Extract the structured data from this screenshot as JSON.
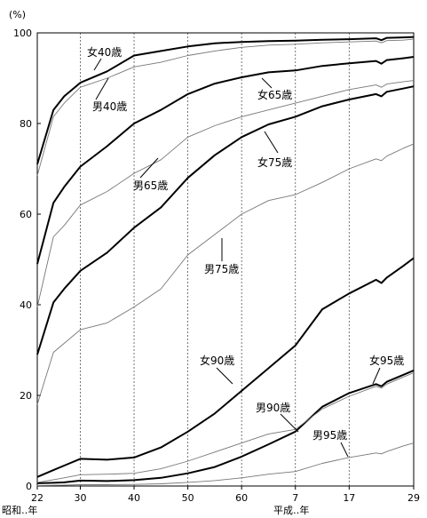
{
  "chart_data": {
    "type": "line",
    "unit_label": "(%)",
    "x_ticks": [
      {
        "year": 1947,
        "label": "22"
      },
      {
        "year": 1955,
        "label": "30"
      },
      {
        "year": 1965,
        "label": "40"
      },
      {
        "year": 1975,
        "label": "50"
      },
      {
        "year": 1985,
        "label": "60"
      },
      {
        "year": 1995,
        "label": "7"
      },
      {
        "year": 2005,
        "label": "17"
      },
      {
        "year": 2017,
        "label": "29"
      }
    ],
    "x_era_labels": {
      "showa": "昭和‥年",
      "heisei": "平成‥年"
    },
    "xlim": [
      1947,
      2017
    ],
    "ylim": [
      0,
      100
    ],
    "y_ticks": [
      0,
      20,
      40,
      60,
      80,
      100
    ],
    "grid": {
      "vertical": true,
      "horizontal": false
    },
    "series": [
      {
        "name": "女40歳",
        "sex": "female",
        "weight": "bold",
        "x": [
          1947,
          1950,
          1952,
          1955,
          1960,
          1965,
          1970,
          1975,
          1980,
          1985,
          1990,
          1995,
          2000,
          2005,
          2010,
          2011,
          2012,
          2015,
          2017
        ],
        "y": [
          71,
          83,
          86,
          89,
          91.5,
          95,
          96,
          97,
          97.7,
          98,
          98.2,
          98.3,
          98.5,
          98.6,
          98.8,
          98.4,
          98.9,
          99,
          99.1
        ]
      },
      {
        "name": "男40歳",
        "sex": "male",
        "weight": "thin",
        "x": [
          1947,
          1950,
          1952,
          1955,
          1960,
          1965,
          1970,
          1975,
          1980,
          1985,
          1990,
          1995,
          2000,
          2005,
          2010,
          2011,
          2012,
          2015,
          2017
        ],
        "y": [
          68.5,
          81.5,
          84.5,
          88,
          90,
          92.5,
          93.5,
          95,
          96,
          96.8,
          97.3,
          97.5,
          97.8,
          98,
          98.2,
          97.8,
          98.3,
          98.4,
          98.6
        ]
      },
      {
        "name": "女65歳",
        "sex": "female",
        "weight": "bold",
        "x": [
          1947,
          1950,
          1952,
          1955,
          1960,
          1965,
          1970,
          1975,
          1980,
          1985,
          1990,
          1995,
          2000,
          2005,
          2010,
          2011,
          2012,
          2015,
          2017
        ],
        "y": [
          49,
          62.5,
          66,
          70.5,
          75,
          80,
          83,
          86.5,
          88.8,
          90.2,
          91.3,
          91.7,
          92.7,
          93.3,
          93.8,
          93.2,
          94,
          94.4,
          94.7
        ]
      },
      {
        "name": "男65歳",
        "sex": "male",
        "weight": "thin",
        "x": [
          1947,
          1950,
          1952,
          1955,
          1960,
          1965,
          1970,
          1975,
          1980,
          1985,
          1990,
          1995,
          2000,
          2005,
          2010,
          2011,
          2012,
          2015,
          2017
        ],
        "y": [
          39.5,
          55,
          57.5,
          62,
          65,
          69,
          72,
          77,
          79.5,
          81.5,
          83,
          84.5,
          86,
          87.5,
          88.5,
          88,
          88.7,
          89.2,
          89.5
        ]
      },
      {
        "name": "女75歳",
        "sex": "female",
        "weight": "bold",
        "x": [
          1947,
          1950,
          1952,
          1955,
          1960,
          1965,
          1970,
          1975,
          1980,
          1985,
          1990,
          1995,
          2000,
          2005,
          2010,
          2011,
          2012,
          2015,
          2017
        ],
        "y": [
          29,
          40.5,
          43.5,
          47.5,
          51.5,
          57,
          61.5,
          68,
          73,
          77,
          79.8,
          81.5,
          83.8,
          85.3,
          86.5,
          86,
          87,
          87.7,
          88.2
        ]
      },
      {
        "name": "男75歳",
        "sex": "male",
        "weight": "thin",
        "x": [
          1947,
          1950,
          1952,
          1955,
          1960,
          1965,
          1970,
          1975,
          1980,
          1985,
          1990,
          1995,
          2000,
          2005,
          2010,
          2011,
          2012,
          2015,
          2017
        ],
        "y": [
          18,
          29.5,
          31.5,
          34.5,
          36,
          39.5,
          43.5,
          51,
          55.5,
          60,
          63,
          64.3,
          67,
          70,
          72.2,
          71.8,
          72.8,
          74.5,
          75.5
        ]
      },
      {
        "name": "女90歳",
        "sex": "female",
        "weight": "bold",
        "x": [
          1947,
          1950,
          1952,
          1955,
          1960,
          1965,
          1970,
          1975,
          1980,
          1985,
          1990,
          1995,
          2000,
          2005,
          2010,
          2011,
          2012,
          2015,
          2017
        ],
        "y": [
          2,
          3.5,
          4.5,
          6,
          5.8,
          6.3,
          8.5,
          12,
          16,
          21,
          26,
          31,
          39,
          42.5,
          45.5,
          44.8,
          46,
          48.5,
          50.3
        ]
      },
      {
        "name": "男90歳",
        "sex": "male",
        "weight": "bold",
        "x": [
          1947,
          1950,
          1952,
          1955,
          1960,
          1965,
          1970,
          1975,
          1980,
          1985,
          1990,
          1995,
          2000,
          2005,
          2010,
          2011,
          2012,
          2015,
          2017
        ],
        "y": [
          0.6,
          0.7,
          0.8,
          1.2,
          1.1,
          1.3,
          1.8,
          2.8,
          4.2,
          6.5,
          9.2,
          12,
          17.5,
          20.5,
          22.5,
          22,
          23,
          24.5,
          25.5
        ]
      },
      {
        "name": "女95歳",
        "sex": "female",
        "weight": "thin",
        "x": [
          1947,
          1950,
          1952,
          1955,
          1960,
          1965,
          1970,
          1975,
          1980,
          1985,
          1990,
          1995,
          2000,
          2005,
          2010,
          2011,
          2012,
          2015,
          2017
        ],
        "y": [
          0.8,
          1.4,
          1.8,
          2.5,
          2.6,
          2.8,
          3.8,
          5.5,
          7.5,
          9.5,
          11.5,
          12.5,
          17,
          19.8,
          22,
          21.6,
          22.5,
          24,
          25
        ]
      },
      {
        "name": "男95歳",
        "sex": "male",
        "weight": "thin",
        "x": [
          1947,
          1950,
          1952,
          1955,
          1960,
          1965,
          1970,
          1975,
          1980,
          1985,
          1990,
          1995,
          2000,
          2005,
          2010,
          2011,
          2012,
          2015,
          2017
        ],
        "y": [
          0.1,
          0.15,
          0.2,
          0.3,
          0.3,
          0.35,
          0.5,
          0.8,
          1.2,
          1.8,
          2.6,
          3.2,
          5,
          6.3,
          7.3,
          7.1,
          7.6,
          8.8,
          9.5
        ]
      }
    ]
  }
}
